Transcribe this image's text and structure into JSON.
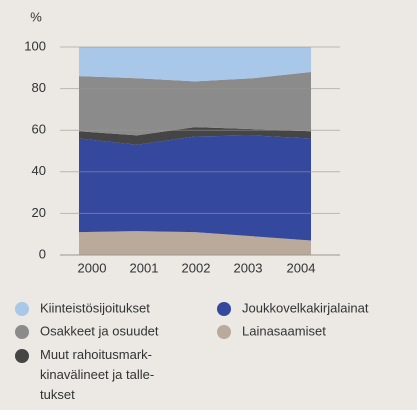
{
  "chart_data": {
    "type": "stacked_area",
    "y_label": "%",
    "categories": [
      "2000",
      "2001",
      "2002",
      "2003",
      "2004"
    ],
    "series": [
      {
        "name": "Lainasaamiset",
        "color": "#b9aa9b",
        "values": [
          11,
          11.5,
          11,
          9,
          7
        ]
      },
      {
        "name": "Joukkovelkakirjalainat",
        "color": "#34489e",
        "values": [
          45,
          41.5,
          46,
          48.5,
          49
        ]
      },
      {
        "name": "Muut rahoitusmark-\nkinavälineet ja talle-\ntukset",
        "color": "#454545",
        "values": [
          3.5,
          4.5,
          4.5,
          3,
          3.5
        ]
      },
      {
        "name": "Osakkeet ja osuudet",
        "color": "#8b8b8b",
        "values": [
          26.5,
          27.5,
          22,
          24.5,
          28.5
        ]
      },
      {
        "name": "Kiinteistösijoitukset",
        "color": "#a9c7e8",
        "values": [
          14,
          15,
          16.5,
          15,
          12
        ]
      }
    ],
    "ylim": [
      0,
      100
    ],
    "yticks": [
      0,
      20,
      40,
      60,
      80,
      100
    ],
    "grid": true
  }
}
